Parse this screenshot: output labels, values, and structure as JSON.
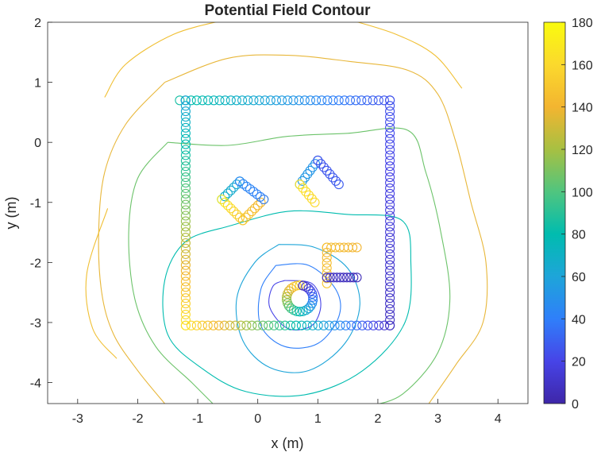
{
  "chart_data": {
    "type": "contour",
    "title": "Potential Field Contour",
    "xlabel": "x (m)",
    "ylabel": "y (m)",
    "xlim": [
      -3.5,
      4.5
    ],
    "ylim": [
      -4.35,
      2.0
    ],
    "xticks": [
      -3,
      -2,
      -1,
      0,
      1,
      2,
      3,
      4
    ],
    "yticks": [
      -4,
      -3,
      -2,
      -1,
      0,
      1,
      2
    ],
    "grid": false,
    "colorbar": {
      "range": [
        0,
        180
      ],
      "ticks": [
        0,
        20,
        40,
        60,
        80,
        100,
        120,
        140,
        160,
        180
      ],
      "colormap": "parula",
      "stops": [
        "#3e26a8",
        "#4744e7",
        "#2f7ffa",
        "#1ea5d9",
        "#00bcaf",
        "#50c57f",
        "#a7c042",
        "#f3b530",
        "#fbd92d",
        "#f9fb0e"
      ]
    },
    "contour_levels": [
      {
        "level": 20,
        "color": "#4744e7",
        "points": [
          [
            0.45,
            -2.3
          ],
          [
            0.9,
            -2.35
          ],
          [
            1.05,
            -2.7
          ],
          [
            0.9,
            -3.05
          ],
          [
            0.5,
            -3.1
          ],
          [
            0.2,
            -2.75
          ],
          [
            0.25,
            -2.4
          ]
        ]
      },
      {
        "level": 45,
        "color": "#2f7ffa",
        "points": [
          [
            0.3,
            -2.05
          ],
          [
            0.85,
            -2.05
          ],
          [
            1.3,
            -2.45
          ],
          [
            1.35,
            -2.9
          ],
          [
            1.0,
            -3.35
          ],
          [
            0.45,
            -3.4
          ],
          [
            0.05,
            -3.05
          ],
          [
            0.05,
            -2.45
          ]
        ]
      },
      {
        "level": 70,
        "color": "#1ea5d9",
        "points": [
          [
            0.35,
            -1.7
          ],
          [
            0.95,
            -1.75
          ],
          [
            1.5,
            -2.1
          ],
          [
            1.7,
            -2.7
          ],
          [
            1.45,
            -3.35
          ],
          [
            0.85,
            -3.8
          ],
          [
            0.2,
            -3.75
          ],
          [
            -0.25,
            -3.3
          ],
          [
            -0.35,
            -2.6
          ],
          [
            -0.05,
            -2.0
          ]
        ]
      },
      {
        "level": 95,
        "color": "#00bcaf",
        "points": [
          [
            -0.5,
            -1.4
          ],
          [
            0.5,
            -1.15
          ],
          [
            1.5,
            -1.2
          ],
          [
            2.4,
            -1.3
          ],
          [
            2.55,
            -2.0
          ],
          [
            2.45,
            -3.0
          ],
          [
            1.75,
            -3.8
          ],
          [
            0.8,
            -4.2
          ],
          [
            -0.2,
            -4.15
          ],
          [
            -0.95,
            -3.75
          ],
          [
            -1.5,
            -3.2
          ],
          [
            -1.55,
            -2.3
          ],
          [
            -1.2,
            -1.65
          ]
        ]
      },
      {
        "level": 120,
        "color": "#6cc36a",
        "points": [
          [
            -1.5,
            0.0
          ],
          [
            -0.5,
            -0.05
          ],
          [
            0.5,
            0.1
          ],
          [
            1.5,
            0.15
          ],
          [
            2.5,
            0.2
          ],
          [
            2.8,
            -0.5
          ],
          [
            3.05,
            -1.5
          ],
          [
            3.2,
            -2.6
          ],
          [
            3.0,
            -3.5
          ],
          [
            2.4,
            -4.2
          ],
          [
            1.8,
            -4.4
          ]
        ]
      },
      {
        "level": 120,
        "color": "#6cc36a",
        "points": [
          [
            -1.5,
            0.0
          ],
          [
            -2.0,
            -0.6
          ],
          [
            -2.15,
            -1.5
          ],
          [
            -2.05,
            -2.6
          ],
          [
            -1.7,
            -3.4
          ],
          [
            -1.1,
            -4.0
          ],
          [
            -0.75,
            -4.35
          ]
        ]
      },
      {
        "level": 145,
        "color": "#e8b73a",
        "points": [
          [
            -1.55,
            1.0
          ],
          [
            -0.5,
            1.4
          ],
          [
            0.5,
            1.45
          ],
          [
            1.5,
            1.35
          ],
          [
            2.5,
            1.2
          ],
          [
            3.0,
            0.8
          ],
          [
            3.3,
            0.0
          ],
          [
            3.55,
            -1.0
          ],
          [
            3.8,
            -2.0
          ],
          [
            3.75,
            -3.0
          ],
          [
            3.3,
            -3.7
          ],
          [
            2.85,
            -4.35
          ]
        ]
      },
      {
        "level": 145,
        "color": "#e8b73a",
        "points": [
          [
            -1.55,
            1.0
          ],
          [
            -2.2,
            0.3
          ],
          [
            -2.55,
            -0.5
          ],
          [
            -2.65,
            -1.5
          ],
          [
            -2.6,
            -2.5
          ],
          [
            -2.4,
            -3.2
          ],
          [
            -2.0,
            -3.8
          ],
          [
            -1.55,
            -4.35
          ]
        ]
      },
      {
        "level": 160,
        "color": "#f0bf32",
        "points": [
          [
            -2.55,
            0.75
          ],
          [
            -2.2,
            1.3
          ],
          [
            -1.4,
            1.8
          ],
          [
            -0.5,
            2.05
          ]
        ]
      },
      {
        "level": 160,
        "color": "#f0bf32",
        "points": [
          [
            1.5,
            2.05
          ],
          [
            2.3,
            1.8
          ],
          [
            2.95,
            1.45
          ],
          [
            3.4,
            0.9
          ]
        ]
      },
      {
        "level": 160,
        "color": "#f0bf32",
        "points": [
          [
            -2.5,
            -1.1
          ],
          [
            -2.85,
            -2.2
          ],
          [
            -2.75,
            -3.1
          ],
          [
            -2.35,
            -3.6
          ]
        ]
      }
    ],
    "scatter_segments": [
      {
        "name": "outer-top",
        "from": [
          -1.3,
          0.7
        ],
        "to": [
          2.2,
          0.7
        ],
        "v0": 85,
        "v1": 25,
        "count": 38
      },
      {
        "name": "outer-right",
        "from": [
          2.2,
          0.7
        ],
        "to": [
          2.2,
          -3.05
        ],
        "v0": 25,
        "v1": 8,
        "count": 42
      },
      {
        "name": "outer-bottom",
        "from": [
          2.2,
          -3.05
        ],
        "to": [
          -1.2,
          -3.05
        ],
        "v0": 8,
        "v1": 165,
        "count": 38
      },
      {
        "name": "outer-left",
        "from": [
          -1.2,
          -3.05
        ],
        "to": [
          -1.2,
          0.7
        ],
        "v0": 165,
        "v1": 60,
        "count": 42
      },
      {
        "name": "obstacle-a-1",
        "from": [
          -0.3,
          -0.65
        ],
        "to": [
          -0.6,
          -0.95
        ],
        "v0": 60,
        "v1": 70,
        "count": 7
      },
      {
        "name": "obstacle-a-2",
        "from": [
          -0.6,
          -0.95
        ],
        "to": [
          -0.25,
          -1.3
        ],
        "v0": 170,
        "v1": 150,
        "count": 8
      },
      {
        "name": "obstacle-a-3",
        "from": [
          -0.25,
          -1.3
        ],
        "to": [
          0.1,
          -0.95
        ],
        "v0": 150,
        "v1": 140,
        "count": 8
      },
      {
        "name": "obstacle-a-4",
        "from": [
          0.1,
          -0.95
        ],
        "to": [
          -0.3,
          -0.65
        ],
        "v0": 40,
        "v1": 45,
        "count": 8
      },
      {
        "name": "obstacle-b-1",
        "from": [
          0.7,
          -0.7
        ],
        "to": [
          1.0,
          -0.3
        ],
        "v0": 55,
        "v1": 50,
        "count": 8
      },
      {
        "name": "obstacle-b-2",
        "from": [
          1.0,
          -0.3
        ],
        "to": [
          1.35,
          -0.7
        ],
        "v0": 25,
        "v1": 28,
        "count": 8
      },
      {
        "name": "obstacle-b-3",
        "from": [
          0.7,
          -0.7
        ],
        "to": [
          0.95,
          -1.0
        ],
        "v0": 165,
        "v1": 160,
        "count": 6
      },
      {
        "name": "obstacle-c-1",
        "from": [
          1.15,
          -2.35
        ],
        "to": [
          1.15,
          -1.75
        ],
        "v0": 150,
        "v1": 140,
        "count": 8
      },
      {
        "name": "obstacle-c-2",
        "from": [
          1.15,
          -1.75
        ],
        "to": [
          1.65,
          -1.75
        ],
        "v0": 145,
        "v1": 140,
        "count": 8
      },
      {
        "name": "obstacle-c-3",
        "from": [
          1.15,
          -2.25
        ],
        "to": [
          1.65,
          -2.25
        ],
        "v0": 10,
        "v1": 5,
        "count": 10
      },
      {
        "name": "inner-ring",
        "center": [
          0.7,
          -2.6
        ],
        "radius": 0.22,
        "v0": 160,
        "v1": 5,
        "count": 26
      }
    ]
  }
}
